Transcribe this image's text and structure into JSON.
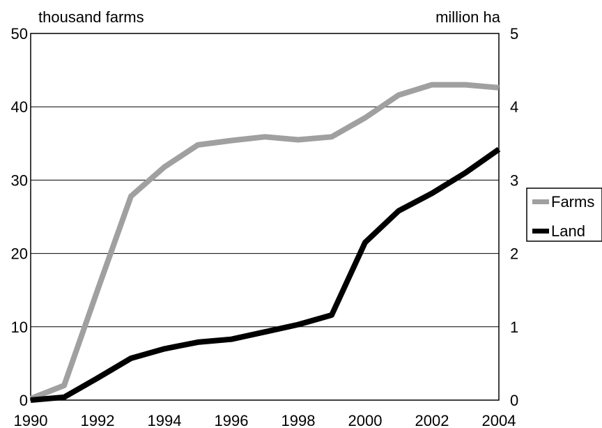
{
  "chart_data": {
    "type": "line",
    "x": [
      1990,
      1991,
      1992,
      1993,
      1994,
      1995,
      1996,
      1997,
      1998,
      1999,
      2000,
      2001,
      2002,
      2003,
      2004
    ],
    "xlim": [
      1990,
      2004
    ],
    "x_ticks": [
      "1990",
      "1992",
      "1994",
      "1996",
      "1998",
      "2000",
      "2002",
      "2004"
    ],
    "ylabel_left": "thousand farms",
    "ylabel_right": "million ha",
    "ylim_left": [
      0,
      50
    ],
    "ylim_right": [
      0,
      5
    ],
    "y_ticks_left": [
      "0",
      "10",
      "20",
      "30",
      "40",
      "50"
    ],
    "y_ticks_right": [
      "0",
      "1",
      "2",
      "3",
      "4",
      "5"
    ],
    "grid": true,
    "legend_position": "right",
    "series": [
      {
        "name": "Farms",
        "axis": "left",
        "color": "#a0a0a0",
        "values": [
          0.2,
          2,
          15,
          27.8,
          31.8,
          34.8,
          35.4,
          35.9,
          35.5,
          35.9,
          38.5,
          41.6,
          43,
          43,
          42.6
        ]
      },
      {
        "name": "Land",
        "axis": "right",
        "color": "#000000",
        "values": [
          0,
          0.04,
          0.3,
          0.57,
          0.7,
          0.79,
          0.83,
          0.93,
          1.03,
          1.16,
          2.15,
          2.58,
          2.82,
          3.1,
          3.42
        ]
      }
    ]
  }
}
